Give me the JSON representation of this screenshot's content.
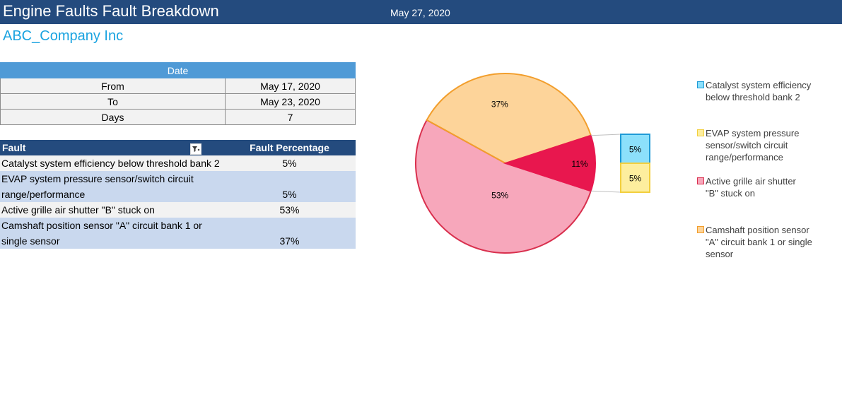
{
  "header": {
    "title": "Engine Faults Fault Breakdown",
    "date": "May 27, 2020"
  },
  "company": "ABC_Company Inc",
  "date_table": {
    "header": "Date",
    "rows": [
      {
        "label": "From",
        "value": "May 17, 2020"
      },
      {
        "label": "To",
        "value": "May 23, 2020"
      },
      {
        "label": "Days",
        "value": "7"
      }
    ]
  },
  "fault_table": {
    "col_fault": "Fault",
    "col_pct": "Fault Percentage",
    "rows": [
      {
        "fault": "Catalyst system efficiency below threshold bank 2",
        "pct": "5%"
      },
      {
        "fault": "EVAP system pressure sensor/switch circuit range/performance",
        "pct": "5%"
      },
      {
        "fault": "Active grille air shutter \"B\" stuck on",
        "pct": "53%"
      },
      {
        "fault": "Camshaft position sensor \"A\" circuit bank 1 or single sensor",
        "pct": "37%"
      }
    ]
  },
  "chart_data": {
    "type": "pie",
    "subtype": "pie-of-pie",
    "categories": [
      "Catalyst system efficiency below threshold bank 2",
      "EVAP system pressure sensor/switch circuit range/performance",
      "Active grille air shutter \"B\" stuck on",
      "Camshaft position sensor \"A\" circuit bank 1 or single sensor"
    ],
    "values": [
      5,
      5,
      53,
      37
    ],
    "labels": [
      "5%",
      "5%",
      "53%",
      "37%"
    ],
    "other_label": "11%",
    "colors": {
      "fill": [
        "#8ce0fb",
        "#fdee9e",
        "#f7a7bb",
        "#fdd49a"
      ],
      "stroke": [
        "#1f9ad6",
        "#f2cf3e",
        "#d9304e",
        "#f29e2c"
      ],
      "other_fill": "#e8174e",
      "connector": "#bfbfbf"
    },
    "legend": [
      "Catalyst system efficiency below threshold bank 2",
      "EVAP system pressure sensor/switch circuit range/performance",
      "Active grille air shutter \"B\" stuck on",
      "Camshaft position sensor \"A\" circuit bank 1 or single sensor"
    ],
    "legend_position": "right"
  }
}
